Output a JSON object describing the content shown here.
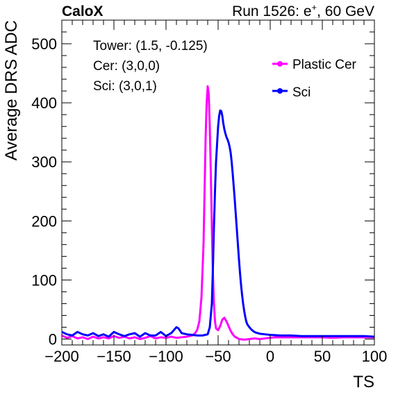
{
  "header": {
    "left": "CaloX",
    "right_prefix": "Run 1526: e",
    "right_sup": "+",
    "right_suffix": ", 60 GeV"
  },
  "annotations": [
    "Tower: (1.5, -0.125)",
    "Cer: (3,0,0)",
    "Sci: (3,0,1)"
  ],
  "chart_data": {
    "type": "line",
    "title": "",
    "xlabel": "TS",
    "ylabel": "Average DRS ADC",
    "xlim": [
      -200,
      100
    ],
    "ylim": [
      -10,
      540
    ],
    "x_ticks": [
      -200,
      -150,
      -100,
      -50,
      0,
      50,
      100
    ],
    "x_tick_labels": [
      "−200",
      "−150",
      "−100",
      "−50",
      "0",
      "50",
      "100"
    ],
    "y_ticks": [
      0,
      100,
      200,
      300,
      400,
      500
    ],
    "y_tick_labels": [
      "0",
      "100",
      "200",
      "300",
      "400",
      "500"
    ],
    "legend_position": "top-right",
    "series": [
      {
        "name": "Plastic Cer",
        "color": "#ff00ff",
        "points": [
          [
            -200,
            6
          ],
          [
            -195,
            2
          ],
          [
            -190,
            5
          ],
          [
            -185,
            1
          ],
          [
            -180,
            3
          ],
          [
            -175,
            0
          ],
          [
            -170,
            4
          ],
          [
            -165,
            1
          ],
          [
            -160,
            3
          ],
          [
            -155,
            1
          ],
          [
            -150,
            5
          ],
          [
            -145,
            2
          ],
          [
            -140,
            4
          ],
          [
            -135,
            1
          ],
          [
            -130,
            3
          ],
          [
            -125,
            0
          ],
          [
            -120,
            2
          ],
          [
            -115,
            5
          ],
          [
            -110,
            1
          ],
          [
            -105,
            3
          ],
          [
            -100,
            2
          ],
          [
            -95,
            4
          ],
          [
            -90,
            2
          ],
          [
            -85,
            3
          ],
          [
            -80,
            4
          ],
          [
            -75,
            6
          ],
          [
            -72,
            10
          ],
          [
            -70,
            16
          ],
          [
            -68,
            30
          ],
          [
            -66,
            70
          ],
          [
            -64,
            160
          ],
          [
            -63,
            250
          ],
          [
            -62,
            340
          ],
          [
            -61,
            400
          ],
          [
            -60,
            428
          ],
          [
            -59,
            415
          ],
          [
            -58,
            360
          ],
          [
            -57,
            280
          ],
          [
            -56,
            190
          ],
          [
            -55,
            110
          ],
          [
            -54,
            60
          ],
          [
            -53,
            30
          ],
          [
            -52,
            18
          ],
          [
            -50,
            15
          ],
          [
            -48,
            22
          ],
          [
            -46,
            33
          ],
          [
            -44,
            36
          ],
          [
            -42,
            30
          ],
          [
            -40,
            22
          ],
          [
            -38,
            14
          ],
          [
            -36,
            8
          ],
          [
            -34,
            4
          ],
          [
            -32,
            2
          ],
          [
            -30,
            0
          ],
          [
            -25,
            -1
          ],
          [
            -20,
            0
          ],
          [
            -15,
            1
          ],
          [
            -10,
            0
          ],
          [
            -5,
            1
          ],
          [
            0,
            2
          ],
          [
            5,
            3
          ],
          [
            10,
            3
          ],
          [
            20,
            3
          ],
          [
            30,
            3
          ],
          [
            40,
            3
          ],
          [
            50,
            3
          ],
          [
            60,
            2
          ],
          [
            70,
            3
          ],
          [
            80,
            3
          ],
          [
            90,
            3
          ],
          [
            100,
            3
          ]
        ]
      },
      {
        "name": "Sci",
        "color": "#0000ff",
        "points": [
          [
            -200,
            12
          ],
          [
            -195,
            8
          ],
          [
            -190,
            6
          ],
          [
            -185,
            12
          ],
          [
            -180,
            8
          ],
          [
            -175,
            6
          ],
          [
            -170,
            10
          ],
          [
            -165,
            5
          ],
          [
            -160,
            8
          ],
          [
            -155,
            4
          ],
          [
            -150,
            12
          ],
          [
            -145,
            8
          ],
          [
            -140,
            5
          ],
          [
            -135,
            8
          ],
          [
            -130,
            10
          ],
          [
            -125,
            4
          ],
          [
            -120,
            10
          ],
          [
            -115,
            6
          ],
          [
            -110,
            6
          ],
          [
            -105,
            12
          ],
          [
            -100,
            5
          ],
          [
            -95,
            10
          ],
          [
            -90,
            20
          ],
          [
            -88,
            18
          ],
          [
            -85,
            10
          ],
          [
            -80,
            8
          ],
          [
            -75,
            7
          ],
          [
            -70,
            6
          ],
          [
            -65,
            6
          ],
          [
            -60,
            8
          ],
          [
            -58,
            20
          ],
          [
            -56,
            60
          ],
          [
            -55,
            120
          ],
          [
            -54,
            190
          ],
          [
            -53,
            250
          ],
          [
            -52,
            300
          ],
          [
            -51,
            330
          ],
          [
            -50,
            360
          ],
          [
            -49,
            378
          ],
          [
            -48,
            387
          ],
          [
            -47,
            386
          ],
          [
            -46,
            378
          ],
          [
            -45,
            365
          ],
          [
            -44,
            355
          ],
          [
            -43,
            348
          ],
          [
            -42,
            342
          ],
          [
            -41,
            338
          ],
          [
            -40,
            333
          ],
          [
            -39,
            326
          ],
          [
            -38,
            316
          ],
          [
            -37,
            300
          ],
          [
            -36,
            280
          ],
          [
            -35,
            258
          ],
          [
            -34,
            235
          ],
          [
            -33,
            210
          ],
          [
            -32,
            185
          ],
          [
            -31,
            160
          ],
          [
            -30,
            135
          ],
          [
            -29,
            112
          ],
          [
            -28,
            92
          ],
          [
            -27,
            75
          ],
          [
            -26,
            60
          ],
          [
            -25,
            48
          ],
          [
            -24,
            38
          ],
          [
            -23,
            30
          ],
          [
            -22,
            25
          ],
          [
            -20,
            20
          ],
          [
            -18,
            16
          ],
          [
            -16,
            13
          ],
          [
            -14,
            11
          ],
          [
            -12,
            10
          ],
          [
            -10,
            9
          ],
          [
            -5,
            8
          ],
          [
            0,
            7
          ],
          [
            10,
            6
          ],
          [
            20,
            6
          ],
          [
            30,
            5
          ],
          [
            40,
            5
          ],
          [
            50,
            5
          ],
          [
            60,
            5
          ],
          [
            70,
            5
          ],
          [
            80,
            5
          ],
          [
            90,
            5
          ],
          [
            100,
            4
          ]
        ]
      }
    ]
  }
}
